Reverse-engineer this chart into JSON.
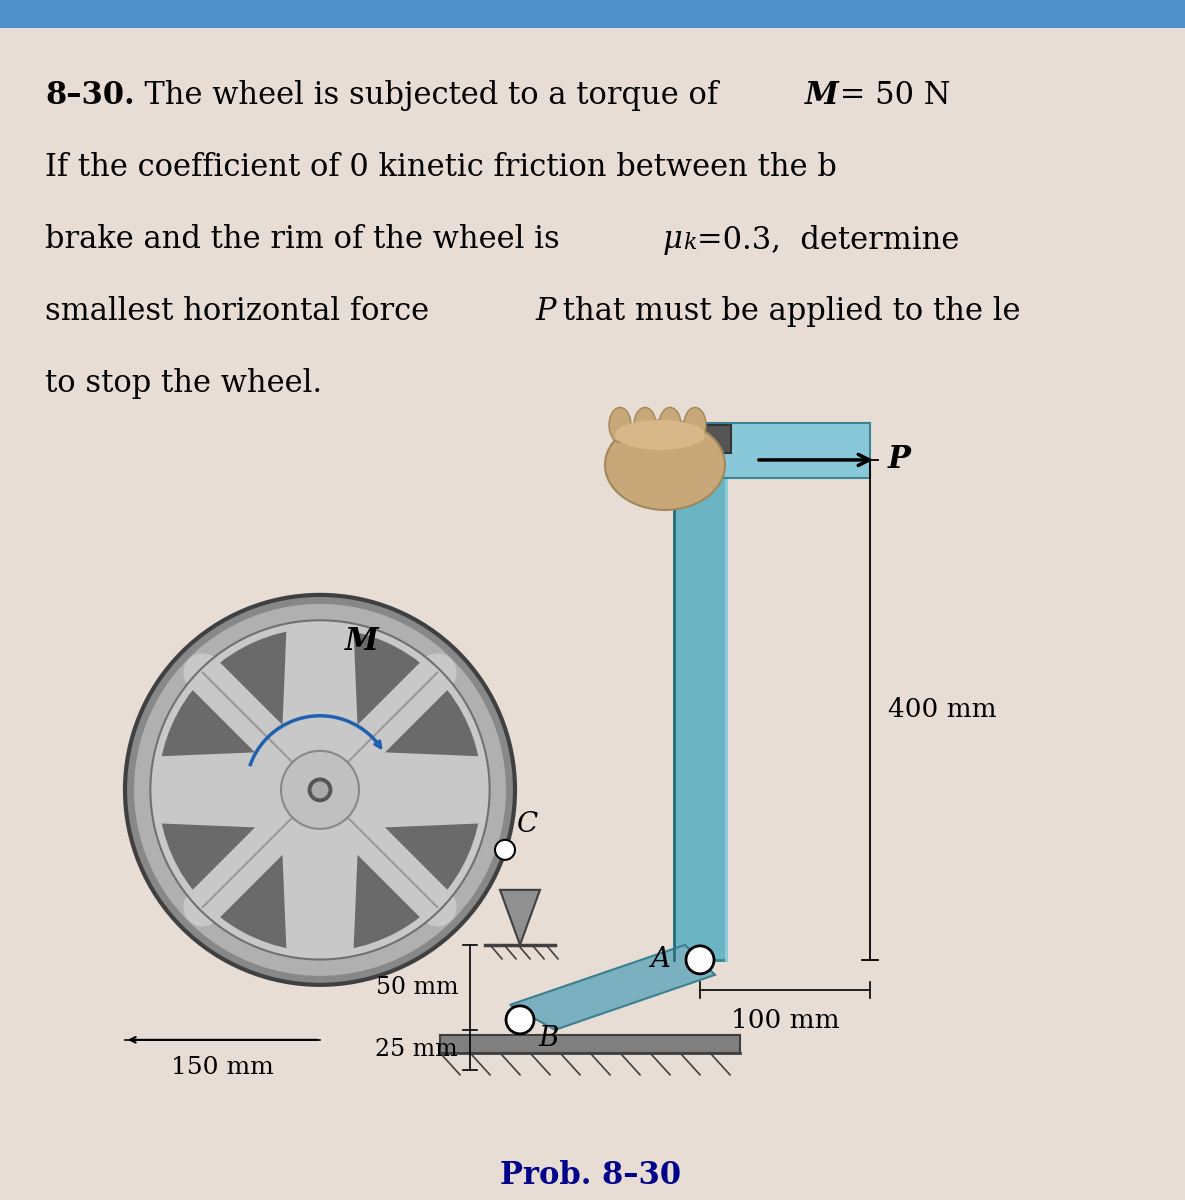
{
  "bg_color": "#e8ddd4",
  "text_color": "#000000",
  "prob_color": "#00008B",
  "lever_color": "#6ab4c4",
  "lever_edge": "#3a8494",
  "wheel_rim_outer": "#888888",
  "wheel_rim_mid": "#aaaaaa",
  "wheel_face": "#c8c8c8",
  "wheel_spoke_light": "#d8d8d8",
  "wheel_dark": "#555555",
  "wheel_hub": "#b8b8b8",
  "torque_arrow_color": "#2060b0",
  "label_M": "M",
  "label_C": "C",
  "label_A": "A",
  "label_B": "B",
  "label_P": "P",
  "label_150mm": "150 mm",
  "label_50mm": "50 mm",
  "label_25mm": "25 mm",
  "label_400mm": "400 mm",
  "label_100mm": "100 mm",
  "prob_label": "Prob. 8–30",
  "line1a": "8–30.",
  "line1b": "  The wheel is subjected to a torque of ",
  "line1c": "M",
  "line1d": " = 50 N",
  "line2": "If the coefficient of 0 kinetic friction between the b",
  "line3a": "brake and the rim of the wheel is ",
  "line3b": "μ",
  "line3c": "k",
  "line3d": "=0.3,  determine",
  "line4a": "smallest horizontal force ",
  "line4b": "P",
  "line4c": " that must be applied to the le",
  "line5": "to stop the wheel."
}
